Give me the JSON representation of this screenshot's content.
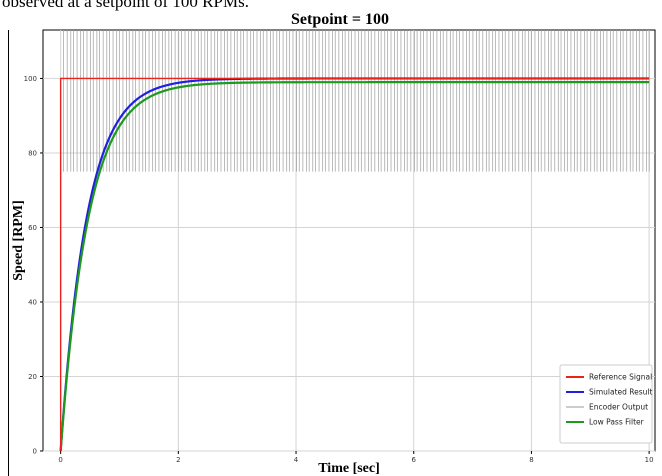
{
  "caption": "observed at a setpoint of 100 RPMs.",
  "chart_data": {
    "type": "line",
    "title": "Setpoint = 100",
    "xlabel": "Time [sec]",
    "ylabel": "Speed [RPM]",
    "xlim": [
      -0.3,
      10.1
    ],
    "ylim": [
      0,
      113
    ],
    "xticks": [
      0,
      2,
      4,
      6,
      8,
      10
    ],
    "yticks": [
      0,
      20,
      40,
      60,
      80,
      100
    ],
    "grid": true,
    "legend_position": "bottom-right",
    "series": [
      {
        "name": "Reference Signal",
        "color": "#e8231e",
        "x": [
          0,
          0,
          10
        ],
        "y": [
          0,
          100,
          100
        ]
      },
      {
        "name": "Simulated Result",
        "color": "#2020e0",
        "model": "first-order step response",
        "final_value": 100,
        "time_constant": 0.45
      },
      {
        "name": "Encoder Output",
        "color": "#9a9a9a",
        "low": 75,
        "high": 113,
        "x_start": 0.05,
        "x_end": 10,
        "spike_count": 180
      },
      {
        "name": "Low Pass Filter",
        "color": "#1d9a1d",
        "model": "first-order step response",
        "final_value": 99,
        "time_constant": 0.47
      }
    ]
  }
}
